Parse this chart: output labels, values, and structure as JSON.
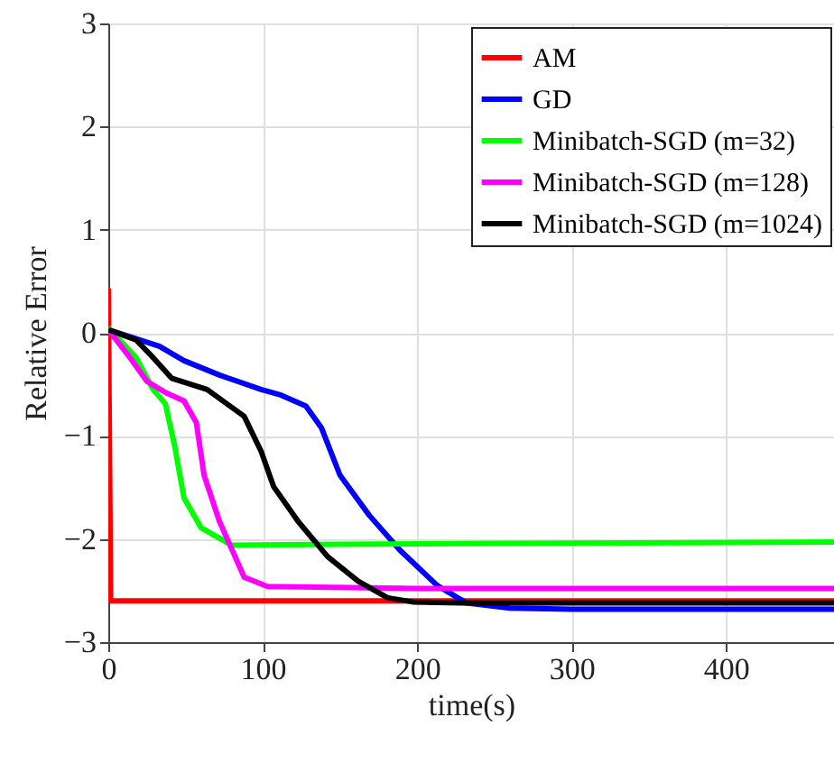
{
  "chart_data": {
    "type": "line",
    "xlabel": "time(s)",
    "ylabel": "Relative Error",
    "xlim": [
      0,
      470
    ],
    "xticks": [
      0,
      100,
      200,
      300,
      400
    ],
    "ylim": [
      -3,
      3
    ],
    "yticks": [
      -3,
      -2,
      -1,
      0,
      1,
      2,
      3
    ],
    "grid": true,
    "legend": "top right",
    "line_style": "solid",
    "marker": "none",
    "series": [
      {
        "name": "AM",
        "color": "#ff0000",
        "x": [
          0,
          1.5,
          470
        ],
        "values": [
          0.43,
          -2.6,
          -2.6
        ]
      },
      {
        "name": "GD",
        "color": "#0000ff",
        "x": [
          0,
          33,
          49,
          72,
          99,
          111,
          128,
          138,
          150,
          169,
          189,
          213,
          232,
          260,
          300,
          470
        ],
        "values": [
          0.03,
          -0.13,
          -0.27,
          -0.41,
          -0.55,
          -0.6,
          -0.71,
          -0.92,
          -1.38,
          -1.77,
          -2.11,
          -2.45,
          -2.62,
          -2.67,
          -2.68,
          -2.68
        ]
      },
      {
        "name": "Minibatch-SGD (m=32)",
        "color": "#00ff00",
        "x": [
          0,
          18,
          29,
          37,
          43,
          49,
          60,
          80,
          150,
          300,
          470
        ],
        "values": [
          0.05,
          -0.24,
          -0.55,
          -0.69,
          -1.1,
          -1.6,
          -1.89,
          -2.06,
          -2.05,
          -2.04,
          -2.03
        ]
      },
      {
        "name": "Minibatch-SGD (m=128)",
        "color": "#ff00ff",
        "x": [
          0,
          14,
          25,
          37,
          49,
          57,
          62,
          72,
          88,
          103,
          200,
          470
        ],
        "values": [
          0.03,
          -0.24,
          -0.47,
          -0.58,
          -0.66,
          -0.87,
          -1.38,
          -1.83,
          -2.37,
          -2.46,
          -2.48,
          -2.48
        ]
      },
      {
        "name": "Minibatch-SGD (m=1024)",
        "color": "#000000",
        "x": [
          0,
          18,
          29,
          41,
          64,
          88,
          99,
          107,
          123,
          142,
          162,
          181,
          197,
          230,
          470
        ],
        "values": [
          0.03,
          -0.07,
          -0.24,
          -0.44,
          -0.55,
          -0.81,
          -1.15,
          -1.49,
          -1.83,
          -2.17,
          -2.41,
          -2.57,
          -2.61,
          -2.62,
          -2.62
        ]
      }
    ]
  }
}
